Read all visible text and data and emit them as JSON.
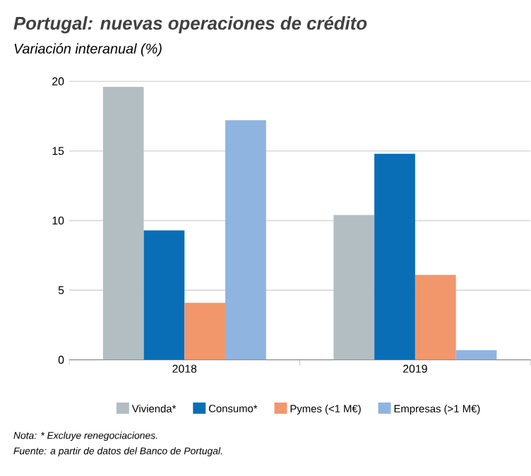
{
  "chart_data": {
    "type": "bar",
    "title": "Portugal: nuevas operaciones de crédito",
    "subtitle": "Variación interanual (%)",
    "categories": [
      "2018",
      "2019"
    ],
    "series": [
      {
        "name": "Vivienda*",
        "color": "#b2bec2",
        "values": [
          19.6,
          10.4
        ]
      },
      {
        "name": "Consumo*",
        "color": "#0a6eb6",
        "values": [
          9.3,
          14.8
        ]
      },
      {
        "name": "Pymes (<1 M€)",
        "color": "#f2966c",
        "values": [
          4.1,
          6.1
        ]
      },
      {
        "name": "Empresas (>1 M€)",
        "color": "#8fb4e0",
        "values": [
          17.2,
          0.7
        ]
      }
    ],
    "ylim": [
      0,
      20
    ],
    "yticks": [
      0,
      5,
      10,
      15,
      20
    ],
    "grid": "y",
    "legend": "bottom",
    "annotations": [
      "Nota: * Excluye renegociaciones.",
      "Fuente: a partir de datos del Banco de Portugal."
    ]
  }
}
